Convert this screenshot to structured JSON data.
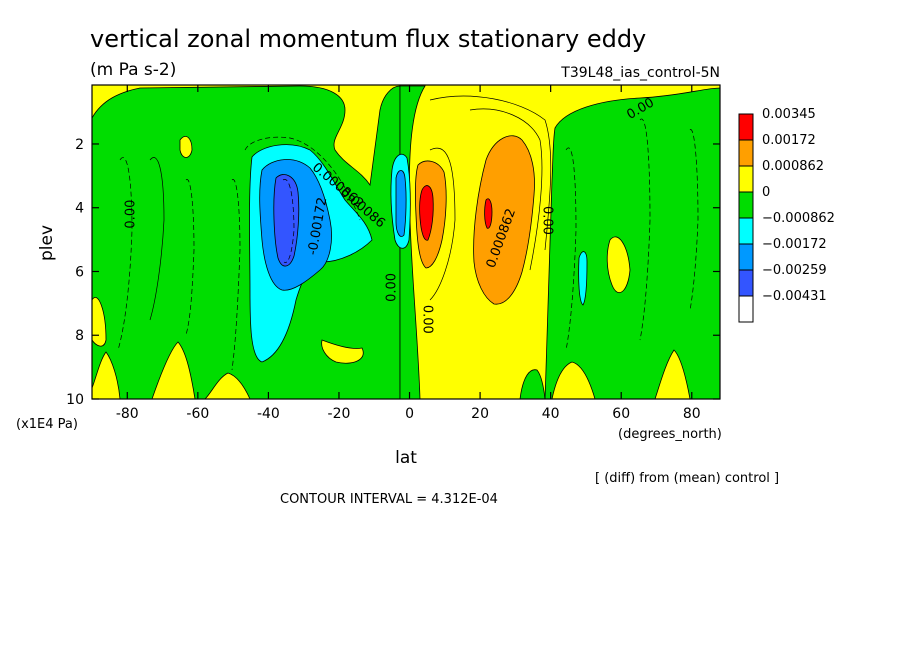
{
  "chart_data": {
    "type": "heatmap",
    "title": "vertical zonal momentum flux stationary eddy",
    "subtitle": "(m Pa s-2)",
    "dataset_label": "T39L48_ias_control-5N",
    "xlabel": "lat",
    "x_units": "(degrees_north)",
    "ylabel": "plev",
    "y_units": "(x1E4 Pa)",
    "footnote": "[ (diff) from (mean) control ]",
    "contour_interval_text": "CONTOUR INTERVAL = 4.312E-04",
    "xlim": [
      -90,
      88
    ],
    "ylim": [
      10,
      0.15
    ],
    "x_ticks": [
      -80,
      -60,
      -40,
      -20,
      0,
      20,
      40,
      60,
      80
    ],
    "y_ticks": [
      2,
      4,
      6,
      8,
      10
    ],
    "legend": [
      {
        "label": "0.00345",
        "color": "#ff0000"
      },
      {
        "label": "0.00172",
        "color": "#ff9f00"
      },
      {
        "label": "0.000862",
        "color": "#ffff00"
      },
      {
        "label": "0",
        "color": "#00dd00"
      },
      {
        "label": "−0.000862",
        "color": "#00ffff"
      },
      {
        "label": "−0.00172",
        "color": "#0099ff"
      },
      {
        "label": "−0.00259",
        "color": "#3355ff"
      },
      {
        "label": "−0.00431",
        "color": "#ffffff"
      }
    ],
    "contour_labels": [
      {
        "text": "0.00",
        "lat": -78,
        "plev": 4.2,
        "angle": -90
      },
      {
        "text": "0.00",
        "lat": 66,
        "plev": 1.0,
        "angle": -30
      },
      {
        "text": "0.000862",
        "lat": -21,
        "plev": 3.4,
        "angle": 40
      },
      {
        "text": "0.00086",
        "lat": -14,
        "plev": 4.1,
        "angle": 40
      },
      {
        "text": "-0.00172",
        "lat": -25,
        "plev": 4.6,
        "angle": -80
      },
      {
        "text": "0.00",
        "lat": -4,
        "plev": 6.5,
        "angle": -90
      },
      {
        "text": "0.00",
        "lat": 4,
        "plev": 7.5,
        "angle": 90
      },
      {
        "text": "0.000862",
        "lat": 27,
        "plev": 5.0,
        "angle": -70
      },
      {
        "text": "0.00",
        "lat": 38,
        "plev": 4.4,
        "angle": 90
      }
    ]
  }
}
